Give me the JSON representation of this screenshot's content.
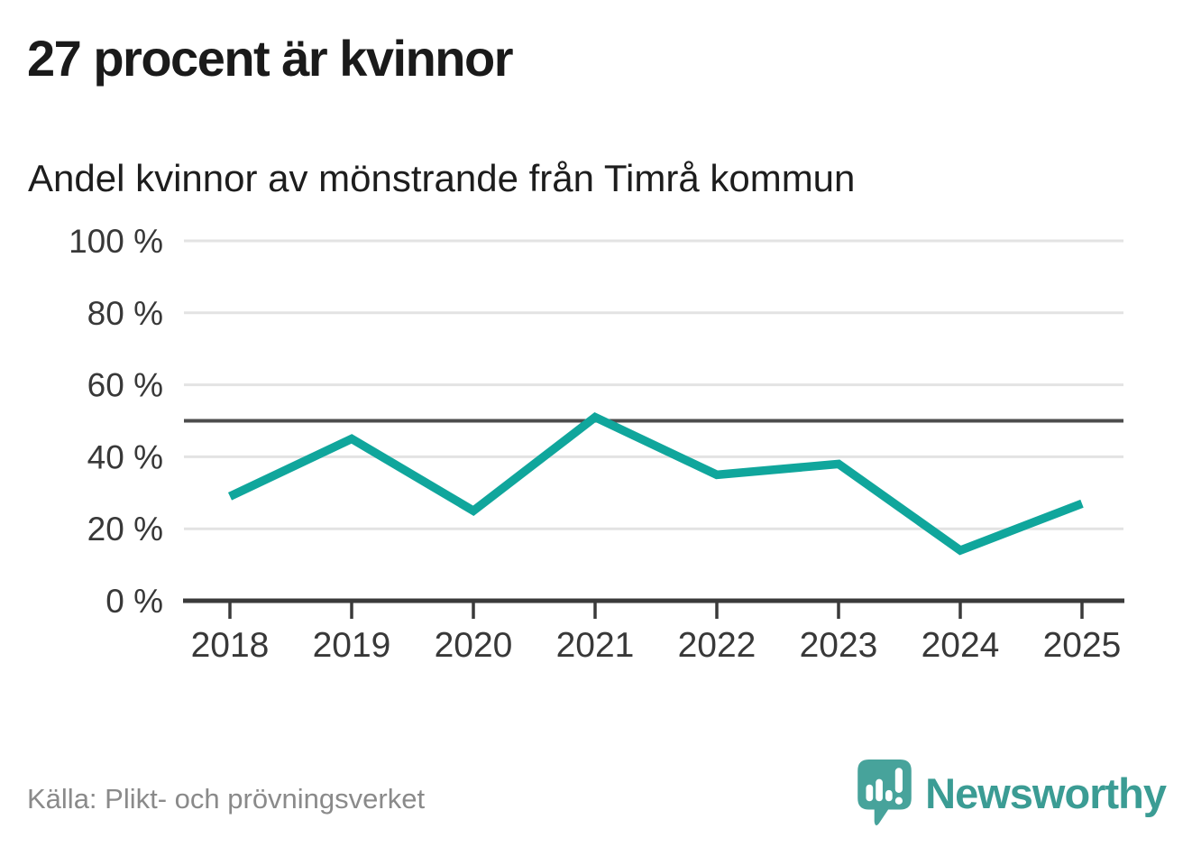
{
  "header": {
    "title": "27 procent är kvinnor",
    "subtitle": "Andel kvinnor av mönstrande från Timrå kommun"
  },
  "chart_data": {
    "type": "line",
    "title": "27 procent är kvinnor",
    "subtitle": "Andel kvinnor av mönstrande från Timrå kommun",
    "categories": [
      "2018",
      "2019",
      "2020",
      "2021",
      "2022",
      "2023",
      "2024",
      "2025"
    ],
    "series": [
      {
        "name": "Andel kvinnor",
        "values": [
          29,
          45,
          25,
          51,
          35,
          38,
          14,
          27
        ]
      }
    ],
    "unit": "%",
    "ylim": [
      0,
      100
    ],
    "yticks": [
      0,
      20,
      40,
      60,
      80,
      100
    ],
    "ytick_labels": [
      "0 %",
      "20 %",
      "40 %",
      "60 %",
      "80 %",
      "100 %"
    ],
    "reference_line": 50,
    "grid": true,
    "legend": "none",
    "colors": {
      "line": "#10a69c",
      "reference": "#4d4d4d",
      "grid": "#e3e3e3",
      "axis": "#3a3a3a",
      "tick_label": "#383838"
    }
  },
  "footer": {
    "source": "Källa: Plikt- och prövningsverket",
    "brand": "Newsworthy",
    "brand_color": "#3b9c94",
    "logo_bubble_color": "#47a39b"
  }
}
